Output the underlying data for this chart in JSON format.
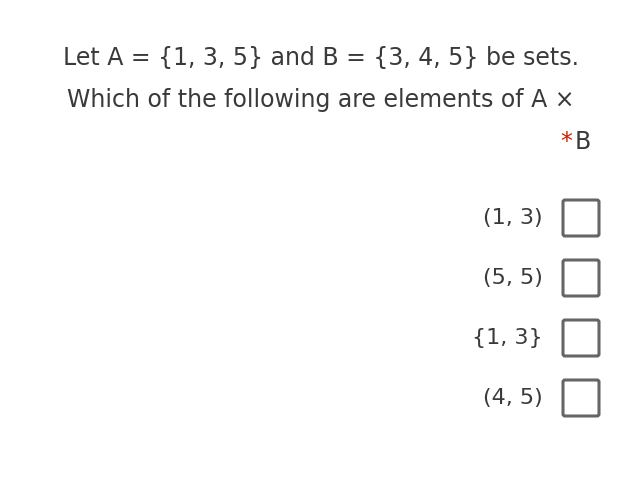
{
  "background_color": "#ffffff",
  "title_line1": "Let A = {1, 3, 5} and B = {3, 4, 5} be sets.",
  "title_line2": "Which of the following are elements of A ×",
  "title_color": "#3a3a3a",
  "star_color": "#cc2200",
  "options": [
    "(1, 3)",
    "(5, 5)",
    "{1, 3}",
    "(4, 5)"
  ],
  "option_color": "#3a3a3a",
  "checkbox_color": "#666666",
  "title_fontsize": 17,
  "option_fontsize": 16,
  "figsize": [
    6.42,
    4.84
  ],
  "dpi": 100
}
